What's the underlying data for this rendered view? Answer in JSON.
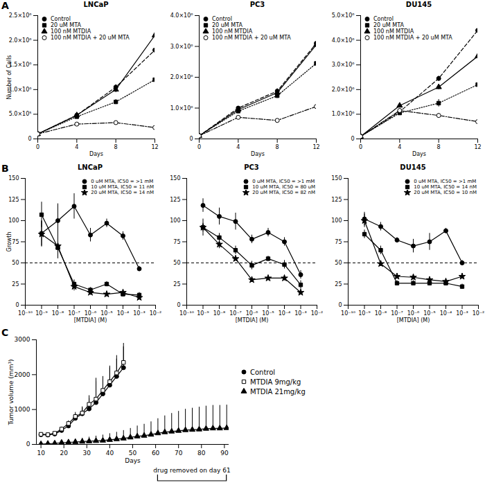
{
  "chart_data": [
    {
      "type": "line",
      "panel_label": "A",
      "title": "LNCaP",
      "x_label": "Days",
      "y_label": "Number of Cells",
      "x": [
        0,
        4,
        8,
        12
      ],
      "xlim": [
        0,
        12
      ],
      "xticks": [
        0,
        4,
        8,
        12
      ],
      "ylim": [
        0,
        2500000
      ],
      "yticks": [
        0,
        {
          "value": 500000,
          "label": "5.0×10⁵"
        },
        {
          "value": 1000000,
          "label": "1.0×10⁶"
        },
        {
          "value": 1500000,
          "label": "1.5×10⁶"
        },
        {
          "value": 2000000,
          "label": "2.0×10⁶"
        },
        {
          "value": 2500000,
          "label": "2.5×10⁶"
        }
      ],
      "legend": "top-left",
      "series": [
        {
          "name": "Control",
          "color": "#000000",
          "marker": "circle",
          "line_style": "dashed",
          "values": [
            100000,
            480000,
            1050000,
            1800000
          ],
          "errors": [
            0,
            20000,
            50000,
            150000
          ]
        },
        {
          "name": "20 uM MTA",
          "color": "#000000",
          "marker": "square",
          "line_style": "dotted",
          "values": [
            100000,
            450000,
            750000,
            1200000
          ],
          "errors": [
            0,
            20000,
            50000,
            200000
          ]
        },
        {
          "name": "100 nM MTDIA",
          "color": "#000000",
          "marker": "triangle",
          "line_style": "solid",
          "values": [
            100000,
            480000,
            1000000,
            2100000
          ],
          "errors": [
            0,
            20000,
            60000,
            350000
          ]
        },
        {
          "name": "100 nM MTDIA + 20 uM MTA",
          "color": "#000000",
          "marker": "circle-open",
          "line_style": "dashdot",
          "values": [
            100000,
            300000,
            330000,
            230000
          ],
          "errors": [
            0,
            20000,
            20000,
            30000
          ]
        }
      ]
    },
    {
      "type": "line",
      "title": "PC3",
      "x_label": "Days",
      "x": [
        0,
        4,
        8,
        12
      ],
      "xlim": [
        0,
        12
      ],
      "xticks": [
        0,
        4,
        8,
        12
      ],
      "ylim": [
        0,
        4000000
      ],
      "yticks": [
        0,
        {
          "value": 1000000,
          "label": "1.0×10⁶"
        },
        {
          "value": 2000000,
          "label": "2.0×10⁶"
        },
        {
          "value": 3000000,
          "label": "3.0×10⁶"
        },
        {
          "value": 4000000,
          "label": "4.0×10⁶"
        }
      ],
      "legend": "top-left",
      "series": [
        {
          "name": "Control",
          "color": "#000000",
          "marker": "circle",
          "line_style": "dashed",
          "values": [
            100000,
            1000000,
            1550000,
            3100000
          ],
          "errors": [
            0,
            50000,
            80000,
            300000
          ]
        },
        {
          "name": "20 uM MTA",
          "color": "#000000",
          "marker": "square",
          "line_style": "dotted",
          "values": [
            100000,
            900000,
            1400000,
            2450000
          ],
          "errors": [
            0,
            50000,
            80000,
            150000
          ]
        },
        {
          "name": "100 nM MTDIA",
          "color": "#000000",
          "marker": "triangle",
          "line_style": "solid",
          "values": [
            100000,
            950000,
            1500000,
            3050000
          ],
          "errors": [
            0,
            40000,
            80000,
            200000
          ]
        },
        {
          "name": "100 nM MTDIA + 20 uM MTA",
          "color": "#000000",
          "marker": "circle-open",
          "line_style": "dashdot",
          "values": [
            100000,
            700000,
            600000,
            1050000
          ],
          "errors": [
            0,
            40000,
            40000,
            60000
          ]
        }
      ]
    },
    {
      "type": "line",
      "title": "DU145",
      "x_label": "Days",
      "x": [
        0,
        4,
        8,
        12
      ],
      "xlim": [
        0,
        12
      ],
      "xticks": [
        0,
        4,
        8,
        12
      ],
      "ylim": [
        0,
        5000000
      ],
      "yticks": [
        0,
        {
          "value": 1000000,
          "label": "1.0×10⁶"
        },
        {
          "value": 2000000,
          "label": "2.0×10⁶"
        },
        {
          "value": 3000000,
          "label": "3.0×10⁶"
        },
        {
          "value": 4000000,
          "label": "4.0×10⁶"
        },
        {
          "value": 5000000,
          "label": "5.0×10⁶"
        }
      ],
      "legend": "top-left",
      "series": [
        {
          "name": "Control",
          "color": "#000000",
          "marker": "circle",
          "line_style": "dashed",
          "values": [
            100000,
            1100000,
            2450000,
            4400000
          ],
          "errors": [
            0,
            80000,
            100000,
            300000
          ]
        },
        {
          "name": "20 uM MTA",
          "color": "#000000",
          "marker": "square",
          "line_style": "dotted",
          "values": [
            100000,
            1050000,
            1450000,
            2200000
          ],
          "errors": [
            0,
            80000,
            150000,
            300000
          ]
        },
        {
          "name": "100 nM MTDIA",
          "color": "#000000",
          "marker": "triangle",
          "line_style": "solid",
          "values": [
            100000,
            1350000,
            2100000,
            3350000
          ],
          "errors": [
            0,
            80000,
            100000,
            250000
          ]
        },
        {
          "name": "100 nM MTDIA + 20 uM MTA",
          "color": "#000000",
          "marker": "circle-open",
          "line_style": "dashdot",
          "values": [
            100000,
            1150000,
            950000,
            700000
          ],
          "errors": [
            0,
            80000,
            80000,
            100000
          ]
        }
      ]
    },
    {
      "type": "line",
      "panel_label": "B",
      "title": "LNCaP",
      "x_label": "[MTDIA] (M)",
      "y_label": "Growth",
      "log": "x",
      "x": [
        1e-09,
        1e-08,
        1e-07,
        1e-06,
        1e-05,
        0.0001,
        0.001
      ],
      "xlim": [
        1e-10,
        0.01
      ],
      "xticks": [
        {
          "value": 1e-10,
          "label": "10⁻¹⁰"
        },
        {
          "value": 1e-09,
          "label": "10⁻⁹"
        },
        {
          "value": 1e-08,
          "label": "10⁻⁸"
        },
        {
          "value": 1e-07,
          "label": "10⁻⁷"
        },
        {
          "value": 1e-06,
          "label": "10⁻⁶"
        },
        {
          "value": 1e-05,
          "label": "10⁻⁵"
        },
        {
          "value": 0.0001,
          "label": "10⁻⁴"
        },
        {
          "value": 0.001,
          "label": "10⁻³"
        },
        {
          "value": 0.01,
          "label": "10⁻²"
        }
      ],
      "ylim": [
        0,
        150
      ],
      "yticks": [
        0,
        25,
        50,
        75,
        100,
        125,
        150
      ],
      "threshold": 50,
      "legend": "top-right",
      "series": [
        {
          "name": "0 uM MTA, IC50 = >1 mM",
          "color": "#000000",
          "marker": "circle",
          "line_style": "solid",
          "values": [
            85,
            100,
            117,
            83,
            97,
            82,
            43
          ],
          "errors": [
            15,
            20,
            15,
            8,
            5,
            5,
            3
          ]
        },
        {
          "name": "10 uM MTA, IC50 = 11 nM",
          "color": "#000000",
          "marker": "square",
          "line_style": "solid",
          "values": [
            107,
            68,
            25,
            18,
            25,
            13,
            12
          ],
          "errors": [
            15,
            10,
            5,
            3,
            3,
            3,
            3
          ]
        },
        {
          "name": "20 uM MTA, IC50 = 14 nM",
          "color": "#000000",
          "marker": "star",
          "line_style": "solid",
          "values": [
            84,
            70,
            22,
            15,
            13,
            15,
            9
          ],
          "errors": [
            15,
            15,
            5,
            3,
            3,
            3,
            3
          ]
        }
      ]
    },
    {
      "type": "line",
      "title": "PC3",
      "x_label": "[MTDIA] (M)",
      "log": "x",
      "x": [
        1e-09,
        1e-08,
        1e-07,
        1e-06,
        1e-05,
        0.0001,
        0.001
      ],
      "xlim": [
        1e-10,
        0.01
      ],
      "xticks": [
        {
          "value": 1e-10,
          "label": "10⁻¹⁰"
        },
        {
          "value": 1e-09,
          "label": "10⁻⁹"
        },
        {
          "value": 1e-08,
          "label": "10⁻⁸"
        },
        {
          "value": 1e-07,
          "label": "10⁻⁷"
        },
        {
          "value": 1e-06,
          "label": "10⁻⁶"
        },
        {
          "value": 1e-05,
          "label": "10⁻⁵"
        },
        {
          "value": 0.0001,
          "label": "10⁻⁴"
        },
        {
          "value": 0.001,
          "label": "10⁻³"
        },
        {
          "value": 0.01,
          "label": "10⁻²"
        }
      ],
      "ylim": [
        0,
        150
      ],
      "yticks": [
        0,
        25,
        50,
        75,
        100,
        125,
        150
      ],
      "threshold": 50,
      "legend": "top-right",
      "series": [
        {
          "name": "0 uM MTA, IC50 = >1 mM",
          "color": "#000000",
          "marker": "circle",
          "line_style": "solid",
          "values": [
            118,
            105,
            99,
            78,
            86,
            75,
            36
          ],
          "errors": [
            8,
            10,
            10,
            5,
            5,
            5,
            5
          ]
        },
        {
          "name": "10 uM MTA, IC50 = 80 uM",
          "color": "#000000",
          "marker": "square",
          "line_style": "solid",
          "values": [
            92,
            80,
            65,
            47,
            55,
            48,
            24
          ],
          "errors": [
            10,
            5,
            5,
            5,
            3,
            5,
            5
          ]
        },
        {
          "name": "20 uM MTA, IC50 = 82 nM",
          "color": "#000000",
          "marker": "star",
          "line_style": "solid",
          "values": [
            92,
            72,
            55,
            30,
            32,
            32,
            15
          ],
          "errors": [
            5,
            5,
            3,
            3,
            3,
            3,
            3
          ]
        }
      ]
    },
    {
      "type": "line",
      "title": "DU145",
      "x_label": "[MTDIA] (M)",
      "log": "x",
      "x": [
        1e-09,
        1e-08,
        1e-07,
        1e-06,
        1e-05,
        0.0001,
        0.001
      ],
      "xlim": [
        1e-10,
        0.01
      ],
      "xticks": [
        {
          "value": 1e-10,
          "label": "10⁻¹⁰"
        },
        {
          "value": 1e-09,
          "label": "10⁻⁹"
        },
        {
          "value": 1e-08,
          "label": "10⁻⁸"
        },
        {
          "value": 1e-07,
          "label": "10⁻⁷"
        },
        {
          "value": 1e-06,
          "label": "10⁻⁶"
        },
        {
          "value": 1e-05,
          "label": "10⁻⁵"
        },
        {
          "value": 0.0001,
          "label": "10⁻⁴"
        },
        {
          "value": 0.001,
          "label": "10⁻³"
        },
        {
          "value": 0.01,
          "label": "10⁻²"
        }
      ],
      "ylim": [
        0,
        150
      ],
      "yticks": [
        0,
        25,
        50,
        75,
        100,
        125,
        150
      ],
      "threshold": 50,
      "legend": "top-right",
      "series": [
        {
          "name": "0 uM MTA, IC50 = >1 mM",
          "color": "#000000",
          "marker": "circle",
          "line_style": "solid",
          "values": [
            102,
            93,
            77,
            70,
            75,
            88,
            50
          ],
          "errors": [
            8,
            5,
            3,
            8,
            10,
            3,
            3
          ]
        },
        {
          "name": "10 uM MTA, IC50 = 14 nM",
          "color": "#000000",
          "marker": "square",
          "line_style": "solid",
          "values": [
            84,
            65,
            26,
            26,
            26,
            26,
            22
          ],
          "errors": [
            5,
            5,
            3,
            3,
            3,
            3,
            3
          ]
        },
        {
          "name": "20 uM MTA, IC50 = 10 nM",
          "color": "#000000",
          "marker": "star",
          "line_style": "solid",
          "values": [
            100,
            49,
            34,
            33,
            30,
            28,
            34
          ],
          "errors": [
            8,
            3,
            3,
            3,
            3,
            3,
            3
          ]
        }
      ]
    },
    {
      "type": "line",
      "panel_label": "C",
      "x_label": "Days",
      "y_label": "Tumor volume (mm³)",
      "xlim": [
        8,
        92
      ],
      "xticks": [
        10,
        20,
        30,
        40,
        50,
        60,
        70,
        80,
        90
      ],
      "ylim": [
        0,
        3000
      ],
      "yticks": [
        0,
        1000,
        2000,
        3000
      ],
      "legend": "right",
      "annotation": {
        "text": "drug removed on day 61",
        "x": [
          61,
          91
        ]
      },
      "series": [
        {
          "name": "Control",
          "color": "#000000",
          "marker": "circle",
          "line_style": "solid",
          "x": [
            10,
            13,
            16,
            19,
            22,
            25,
            28,
            31,
            34,
            37,
            40,
            43,
            46
          ],
          "values": [
            280,
            270,
            300,
            400,
            530,
            750,
            880,
            1020,
            1200,
            1450,
            1700,
            1950,
            2200
          ],
          "errors_upper": [
            30,
            30,
            40,
            60,
            80,
            120,
            200,
            300,
            700,
            400,
            500,
            500,
            600
          ]
        },
        {
          "name": "MTDIA 9mg/kg",
          "color": "#000000",
          "marker": "square-open",
          "line_style": "solid",
          "x": [
            10,
            13,
            16,
            19,
            22,
            25,
            28,
            31,
            34,
            37,
            40,
            43,
            46
          ],
          "values": [
            290,
            280,
            320,
            440,
            600,
            800,
            900,
            1150,
            1300,
            1550,
            1800,
            2050,
            2350
          ],
          "errors_upper": [
            30,
            30,
            40,
            60,
            80,
            120,
            150,
            250,
            500,
            400,
            450,
            500,
            550
          ]
        },
        {
          "name": "MTDIA 21mg/kg",
          "color": "#000000",
          "marker": "triangle",
          "line_style": "solid",
          "x": [
            10,
            13,
            16,
            19,
            22,
            25,
            28,
            31,
            34,
            37,
            40,
            43,
            46,
            49,
            52,
            55,
            58,
            61,
            64,
            67,
            70,
            73,
            76,
            79,
            82,
            85,
            88,
            91
          ],
          "values": [
            10,
            20,
            30,
            50,
            60,
            70,
            80,
            90,
            100,
            110,
            130,
            150,
            170,
            200,
            230,
            250,
            280,
            320,
            350,
            370,
            390,
            410,
            420,
            430,
            450,
            460,
            460,
            470
          ],
          "errors_upper": [
            20,
            30,
            40,
            50,
            60,
            80,
            100,
            120,
            140,
            160,
            180,
            200,
            230,
            260,
            300,
            330,
            370,
            420,
            470,
            520,
            560,
            600,
            620,
            640,
            650,
            660,
            660,
            660
          ]
        }
      ]
    }
  ]
}
